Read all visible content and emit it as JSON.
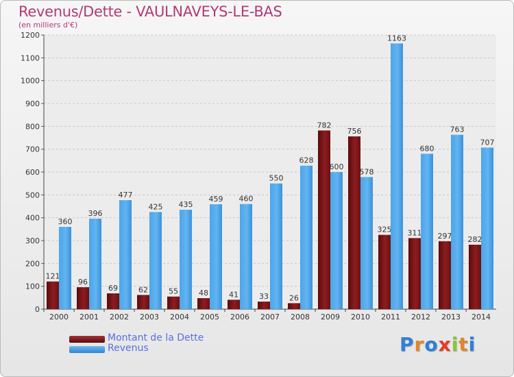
{
  "title": "Revenus/Dette - VAULNAVEYS-LE-BAS",
  "subtitle": "(en milliers d'€)",
  "logo": "Proxiti",
  "colors": {
    "title": "#b23a74",
    "dette": "#7a1416",
    "revenus": "#3d9ae3",
    "legend_text": "#5a6fe0"
  },
  "legend": [
    {
      "label": "Montant de la Dette",
      "color": "#7a1416"
    },
    {
      "label": "Revenus",
      "color": "#3d9ae3"
    }
  ],
  "chart_data": {
    "type": "bar",
    "title": "Revenus/Dette - VAULNAVEYS-LE-BAS",
    "subtitle": "(en milliers d'€)",
    "categories": [
      "2000",
      "2001",
      "2002",
      "2003",
      "2004",
      "2005",
      "2006",
      "2007",
      "2008",
      "2009",
      "2010",
      "2011",
      "2012",
      "2013",
      "2014"
    ],
    "series": [
      {
        "name": "Montant de la Dette",
        "values": [
          121,
          96,
          69,
          62,
          55,
          48,
          41,
          33,
          26,
          782,
          756,
          325,
          311,
          297,
          282
        ]
      },
      {
        "name": "Revenus",
        "values": [
          360,
          396,
          477,
          425,
          435,
          459,
          460,
          550,
          628,
          600,
          578,
          1163,
          680,
          763,
          707
        ]
      }
    ],
    "ylim": [
      0,
      1200
    ],
    "yticks": [
      0,
      100,
      200,
      300,
      400,
      500,
      600,
      700,
      800,
      900,
      1000,
      1100,
      1200
    ],
    "grid": true,
    "legend_position": "bottom-left"
  }
}
